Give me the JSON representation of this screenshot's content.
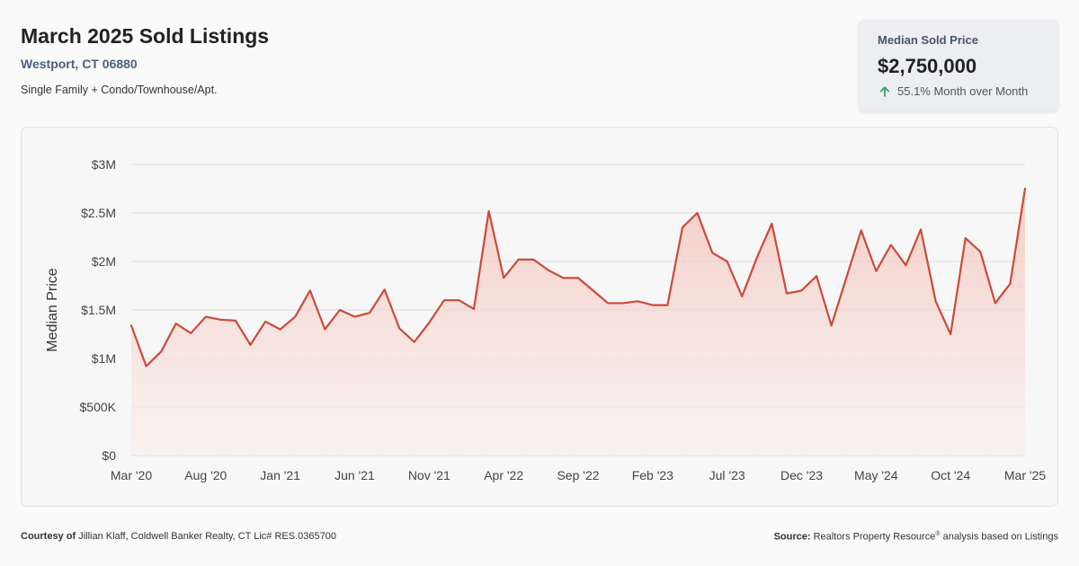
{
  "header": {
    "title": "March 2025 Sold Listings",
    "location": "Westport, CT 06880",
    "subtitle": "Single Family + Condo/Townhouse/Apt."
  },
  "kpi": {
    "label": "Median Sold Price",
    "value": "$2,750,000",
    "change": "55.1% Month over Month",
    "icon": "arrow-up-icon",
    "color": "#3aa05a"
  },
  "footer": {
    "courtesy_label": "Courtesy of",
    "courtesy_text": "Jillian Klaff, Coldwell Banker Realty, CT Lic# RES.0365700",
    "source_label": "Source:",
    "source_text_1": "Realtors Property Resource",
    "source_mark": "®",
    "source_text_2": "analysis based on Listings"
  },
  "colors": {
    "line": "#cc4a3a",
    "fill_top": "#f3c6be",
    "fill_bottom": "#fbeeeb",
    "grid": "#dddddd"
  },
  "chart_data": {
    "type": "area",
    "ylabel": "Median Price",
    "xlabel": "",
    "ylim": [
      0,
      3000000
    ],
    "yticks": [
      0,
      500000,
      1000000,
      1500000,
      2000000,
      2500000,
      3000000
    ],
    "ytick_labels": [
      "$0",
      "$500K",
      "$1M",
      "$1.5M",
      "$2M",
      "$2.5M",
      "$3M"
    ],
    "xtick_labels": [
      "Mar '20",
      "Aug '20",
      "Jan '21",
      "Jun '21",
      "Nov '21",
      "Apr '22",
      "Sep '22",
      "Feb '23",
      "Jul '23",
      "Dec '23",
      "May '24",
      "Oct '24",
      "Mar '25"
    ],
    "xtick_every": 5,
    "grid": true,
    "series": [
      {
        "values": [
          1340000,
          920000,
          1070000,
          1360000,
          1260000,
          1430000,
          1400000,
          1390000,
          1140000,
          1380000,
          1300000,
          1430000,
          1700000,
          1300000,
          1500000,
          1430000,
          1470000,
          1710000,
          1310000,
          1170000,
          1370000,
          1600000,
          1600000,
          1510000,
          2520000,
          1830000,
          2020000,
          2020000,
          1910000,
          1830000,
          1830000,
          1700000,
          1570000,
          1570000,
          1590000,
          1550000,
          1550000,
          2350000,
          2500000,
          2090000,
          2000000,
          1640000,
          2040000,
          2390000,
          1670000,
          1700000,
          1850000,
          1340000,
          1830000,
          2320000,
          1900000,
          2170000,
          1960000,
          2330000,
          1590000,
          1250000,
          2240000,
          2100000,
          1570000,
          1770000,
          2750000
        ]
      }
    ]
  }
}
